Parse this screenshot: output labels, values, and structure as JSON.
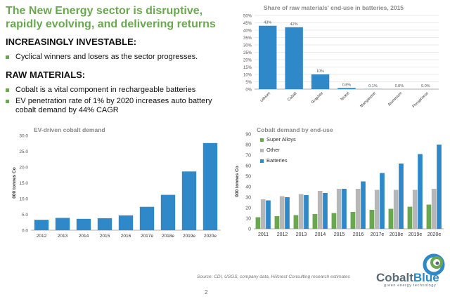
{
  "title": "The New Energy sector is disruptive, rapidly evolving, and delivering returns",
  "section1": {
    "heading": "INCREASINGLY INVESTABLE:",
    "bullets": [
      "Cyclical winners and losers as the sector progresses."
    ]
  },
  "section2": {
    "heading": "RAW MATERIALS:",
    "bullets": [
      "Cobalt is a vital component in rechargeable batteries",
      "EV penetration rate of 1% by 2020 increases auto battery cobalt demand by 44% CAGR"
    ]
  },
  "source": "Source: CDI, USGS, company data, Hillcrest Consulting research estimates",
  "page_number": "2",
  "logo": {
    "name_part1": "Cobalt",
    "name_part2": "Blue",
    "tagline": "green energy technology"
  },
  "colors": {
    "title_green": "#6aa84f",
    "bar_blue": "#2f89c9",
    "green": "#6aa84f",
    "grey": "#b7b7b7"
  },
  "chart_data": [
    {
      "id": "raw",
      "type": "bar",
      "title": "Share of raw materials' end-use in batteries, 2015",
      "categories": [
        "Lithium",
        "Cobalt",
        "Graphite",
        "Nickel",
        "Manganese",
        "Aluminium",
        "Phosphorus"
      ],
      "values": [
        43,
        42,
        10,
        0.8,
        0.1,
        0.0,
        0.0
      ],
      "labels": [
        "43%",
        "42%",
        "10%",
        "0.8%",
        "0.1%",
        "0.0%",
        "0.0%"
      ],
      "ylim": [
        0,
        50
      ],
      "yticks": [
        0,
        5,
        10,
        15,
        20,
        25,
        30,
        35,
        40,
        45,
        50
      ],
      "ytick_labels": [
        "0%",
        "5%",
        "10%",
        "15%",
        "20%",
        "25%",
        "30%",
        "35%",
        "40%",
        "45%",
        "50%"
      ],
      "xlabel": "",
      "ylabel": ""
    },
    {
      "id": "ev",
      "type": "bar",
      "title": "EV-driven cobalt demand",
      "categories": [
        "2012",
        "2013",
        "2014",
        "2015",
        "2016",
        "2017e",
        "2018e",
        "2019e",
        "2020e"
      ],
      "values": [
        3.3,
        3.9,
        3.6,
        3.8,
        4.7,
        7.4,
        11.2,
        18.6,
        27.6
      ],
      "ylim": [
        0,
        30
      ],
      "yticks": [
        0,
        5,
        10,
        15,
        20,
        25,
        30
      ],
      "ytick_labels": [
        "0.0",
        "5.0",
        "10.0",
        "15.0",
        "20.0",
        "25.0",
        "30.0"
      ],
      "xlabel": "",
      "ylabel": "000 tonnes Co"
    },
    {
      "id": "enduse",
      "type": "bar",
      "title": "Cobalt demand by end-use",
      "categories": [
        "2011",
        "2012",
        "2013",
        "2014",
        "2015",
        "2016",
        "2017e",
        "2018e",
        "2019e",
        "2020e"
      ],
      "series": [
        {
          "name": "Super Alloys",
          "values": [
            11,
            12,
            13,
            14,
            15,
            16,
            18,
            19,
            21,
            23
          ]
        },
        {
          "name": "Other",
          "values": [
            28,
            31,
            33,
            36,
            38,
            38,
            37,
            37,
            37,
            38
          ]
        },
        {
          "name": "Batteries",
          "values": [
            27,
            30,
            32,
            34,
            38,
            45,
            53,
            62,
            71,
            80
          ]
        }
      ],
      "ylim": [
        0,
        90
      ],
      "yticks": [
        0,
        10,
        20,
        30,
        40,
        50,
        60,
        70,
        80,
        90
      ],
      "ytick_labels": [
        "0",
        "10",
        "20",
        "30",
        "40",
        "50",
        "60",
        "70",
        "80",
        "90"
      ],
      "xlabel": "",
      "ylabel": "000 tonnes Co"
    }
  ]
}
